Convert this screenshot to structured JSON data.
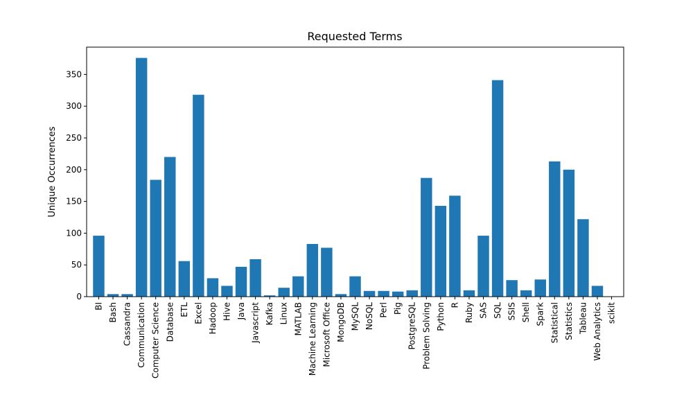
{
  "chart_data": {
    "type": "bar",
    "title": "Requested Terms",
    "xlabel": "",
    "ylabel": "Unique Occurrences",
    "ylim": [
      0,
      393
    ],
    "yticks": [
      0,
      50,
      100,
      150,
      200,
      250,
      300,
      350
    ],
    "grid": false,
    "bar_color": "#1f77b4",
    "categories": [
      "BI",
      "Bash",
      "Cassandra",
      "Communication",
      "Computer Science",
      "Database",
      "ETL",
      "Excel",
      "Hadoop",
      "Hive",
      "Java",
      "Javascript",
      "Kafka",
      "Linux",
      "MATLAB",
      "Machine Learning",
      "Microsoft Office",
      "MongoDB",
      "MySQL",
      "NoSQL",
      "Perl",
      "Pig",
      "PostgreSQL",
      "Problem Solving",
      "Python",
      "R",
      "Ruby",
      "SAS",
      "SQL",
      "SSIS",
      "Shell",
      "Spark",
      "Statistical",
      "Statistics",
      "Tableau",
      "Web Analytics",
      "scikit"
    ],
    "values": [
      96,
      4,
      4,
      376,
      184,
      220,
      56,
      318,
      29,
      17,
      47,
      59,
      2,
      14,
      32,
      83,
      77,
      4,
      32,
      9,
      9,
      8,
      10,
      187,
      143,
      159,
      10,
      96,
      341,
      26,
      10,
      27,
      213,
      200,
      122,
      17,
      0
    ]
  }
}
